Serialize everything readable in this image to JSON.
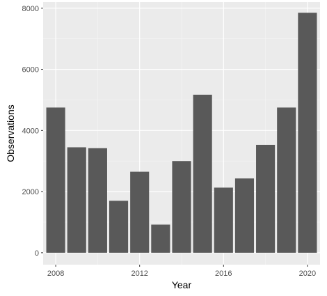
{
  "colors": {
    "panel_background": "#ebebeb",
    "major_grid": "#ffffff",
    "minor_grid": "#f5f5f5",
    "bar_fill": "#595959",
    "tick_label": "#4d4d4d",
    "axis_title": "#000000"
  },
  "chart_data": {
    "type": "bar",
    "title": "",
    "xlabel": "Year",
    "ylabel": "Observations",
    "x": [
      2008,
      2009,
      2010,
      2011,
      2012,
      2013,
      2014,
      2015,
      2016,
      2017,
      2018,
      2019,
      2020
    ],
    "values": [
      4750,
      3450,
      3420,
      1700,
      2650,
      920,
      3000,
      5170,
      2130,
      2430,
      3530,
      4750,
      7850
    ],
    "xlim": [
      2007.4,
      2020.6
    ],
    "ylim": [
      -390,
      8200
    ],
    "x_ticks": [
      2008,
      2012,
      2016,
      2020
    ],
    "x_tick_labels": [
      "2008",
      "2012",
      "2016",
      "2020"
    ],
    "y_ticks": [
      0,
      2000,
      4000,
      6000,
      8000
    ],
    "y_tick_labels": [
      "0",
      "2000",
      "4000",
      "6000",
      "8000"
    ],
    "grid": true,
    "legend": "none"
  }
}
